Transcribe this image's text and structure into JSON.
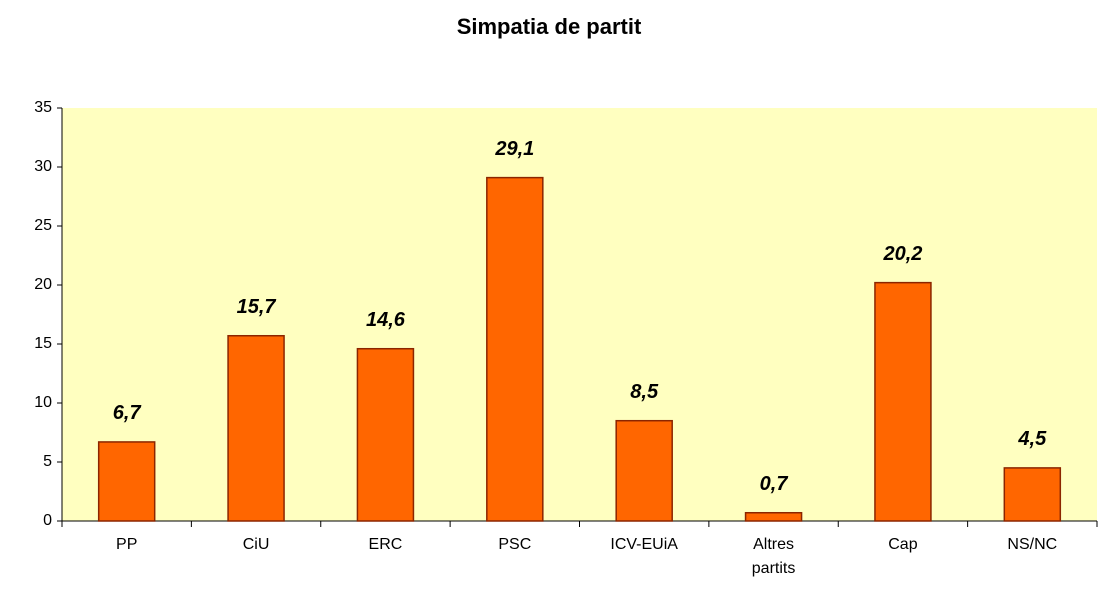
{
  "chart_data": {
    "type": "bar",
    "title": "Simpatia de partit",
    "categories": [
      "PP",
      "CiU",
      "ERC",
      "PSC",
      "ICV-EUiA",
      "Altres partits",
      "Cap",
      "NS/NC"
    ],
    "values": [
      6.7,
      15.7,
      14.6,
      29.1,
      8.5,
      0.7,
      20.2,
      4.5
    ],
    "value_labels": [
      "6,7",
      "15,7",
      "14,6",
      "29,1",
      "8,5",
      "0,7",
      "20,2",
      "4,5"
    ],
    "color": "#ff6600",
    "ylim": [
      0,
      35
    ],
    "yticks": [
      0,
      5,
      10,
      15,
      20,
      25,
      30,
      35
    ]
  }
}
